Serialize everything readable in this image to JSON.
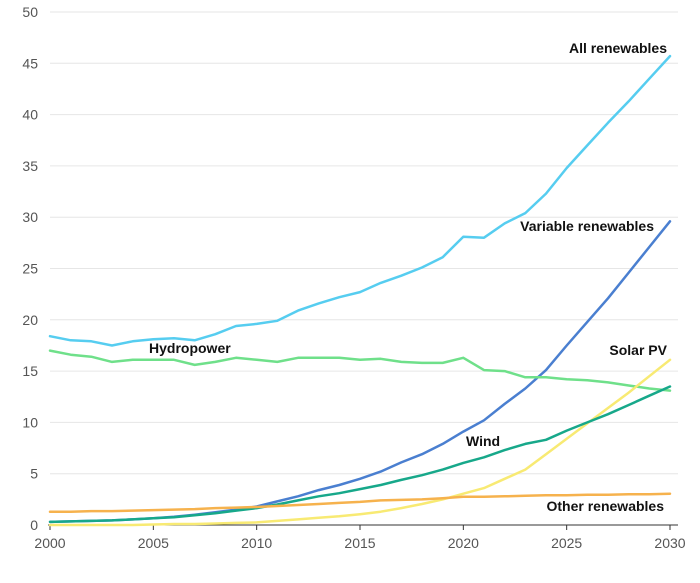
{
  "chart_data": {
    "type": "line",
    "title": "",
    "xlabel": "",
    "ylabel": "",
    "xlim": [
      2000,
      2030
    ],
    "ylim": [
      0,
      50
    ],
    "grid": true,
    "legend": "direct-labels",
    "x_ticks": [
      "2000",
      "2005",
      "2010",
      "2015",
      "2020",
      "2025",
      "2030"
    ],
    "y_ticks": [
      "0",
      "5",
      "10",
      "15",
      "20",
      "25",
      "30",
      "35",
      "40",
      "45",
      "50"
    ],
    "x": [
      2000,
      2001,
      2002,
      2003,
      2004,
      2005,
      2006,
      2007,
      2008,
      2009,
      2010,
      2011,
      2012,
      2013,
      2014,
      2015,
      2016,
      2017,
      2018,
      2019,
      2020,
      2021,
      2022,
      2023,
      2024,
      2025,
      2026,
      2027,
      2028,
      2029,
      2030
    ],
    "series": [
      {
        "name": "All renewables",
        "color": "#56cdf0",
        "values": [
          18.4,
          18.0,
          17.9,
          17.5,
          17.9,
          18.1,
          18.2,
          18.0,
          18.6,
          19.4,
          19.6,
          19.9,
          20.9,
          21.6,
          22.2,
          22.7,
          23.6,
          24.3,
          25.1,
          26.1,
          28.1,
          28.0,
          29.4,
          30.4,
          32.3,
          34.8,
          37.0,
          39.2,
          41.3,
          43.5,
          45.7
        ]
      },
      {
        "name": "Variable renewables",
        "color": "#4a7fd0",
        "values": [
          0.3,
          0.35,
          0.4,
          0.45,
          0.55,
          0.65,
          0.8,
          1.0,
          1.25,
          1.5,
          1.8,
          2.3,
          2.8,
          3.4,
          3.9,
          4.5,
          5.2,
          6.1,
          6.9,
          7.9,
          9.1,
          10.2,
          11.8,
          13.3,
          15.1,
          17.5,
          19.8,
          22.1,
          24.6,
          27.1,
          29.6
        ]
      },
      {
        "name": "Hydropower",
        "color": "#6fe08a",
        "values": [
          17.0,
          16.6,
          16.4,
          15.9,
          16.1,
          16.1,
          16.1,
          15.6,
          15.9,
          16.3,
          16.1,
          15.9,
          16.3,
          16.3,
          16.3,
          16.1,
          16.2,
          15.9,
          15.8,
          15.8,
          16.3,
          15.1,
          15.0,
          14.4,
          14.4,
          14.2,
          14.1,
          13.9,
          13.6,
          13.3,
          13.1
        ]
      },
      {
        "name": "Solar PV",
        "color": "#f8ea73",
        "values": [
          0.0,
          0.0,
          0.0,
          0.0,
          0.0,
          0.05,
          0.1,
          0.1,
          0.15,
          0.2,
          0.25,
          0.4,
          0.55,
          0.7,
          0.85,
          1.05,
          1.3,
          1.65,
          2.05,
          2.5,
          3.05,
          3.6,
          4.5,
          5.4,
          6.9,
          8.4,
          9.9,
          11.4,
          12.9,
          14.5,
          16.1
        ]
      },
      {
        "name": "Wind",
        "color": "#17a88a",
        "values": [
          0.3,
          0.35,
          0.4,
          0.45,
          0.55,
          0.65,
          0.75,
          0.95,
          1.15,
          1.4,
          1.65,
          2.0,
          2.4,
          2.8,
          3.1,
          3.5,
          3.9,
          4.4,
          4.85,
          5.4,
          6.05,
          6.6,
          7.3,
          7.9,
          8.3,
          9.2,
          10.0,
          10.8,
          11.7,
          12.6,
          13.5
        ]
      },
      {
        "name": "Other renewables",
        "color": "#f6b24d",
        "values": [
          1.3,
          1.3,
          1.35,
          1.35,
          1.4,
          1.45,
          1.5,
          1.55,
          1.65,
          1.7,
          1.75,
          1.85,
          1.95,
          2.05,
          2.15,
          2.25,
          2.4,
          2.45,
          2.5,
          2.6,
          2.75,
          2.75,
          2.8,
          2.85,
          2.9,
          2.9,
          2.95,
          2.95,
          3.0,
          3.0,
          3.05
        ]
      }
    ]
  }
}
